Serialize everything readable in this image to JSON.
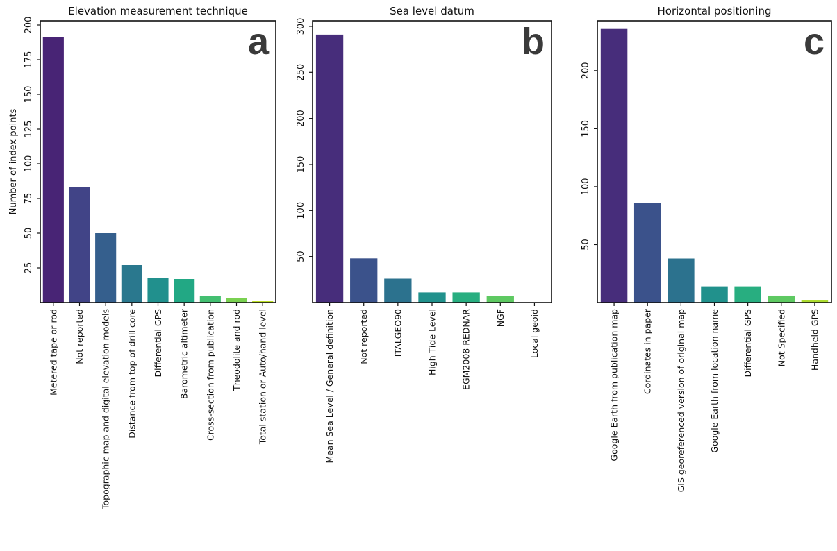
{
  "chart_data": [
    {
      "type": "bar",
      "panel": "a",
      "title": "Elevation measurement technique",
      "ylabel": "Number of index points",
      "ylim": [
        0,
        203
      ],
      "yticks": [
        25,
        50,
        75,
        100,
        125,
        150,
        175,
        200
      ],
      "categories": [
        "Metered tape or rod",
        "Not reported",
        "Topographic map and digital elevation models",
        "Distance from top of drill core",
        "Differential GPS",
        "Barometric altimeter",
        "Cross-section from publication",
        "Theodolite and rod",
        "Total station or Auto/hand level"
      ],
      "values": [
        191,
        83,
        50,
        27,
        18,
        17,
        5,
        3,
        1
      ],
      "colors": [
        "#482475",
        "#414487",
        "#355f8d",
        "#2a788e",
        "#21908d",
        "#22a884",
        "#43bf71",
        "#7ad151",
        "#bddf26"
      ],
      "grid": false
    },
    {
      "type": "bar",
      "panel": "b",
      "title": "Sea level datum",
      "ylabel": "",
      "ylim": [
        0,
        306
      ],
      "yticks": [
        50,
        100,
        150,
        200,
        250,
        300
      ],
      "categories": [
        "Mean Sea Level / General definition",
        "Not reported",
        "ITALGEO90",
        "High Tide Level",
        "EGM2008 REDNAR",
        "NGF",
        "Local geoid"
      ],
      "values": [
        291,
        48,
        26,
        11,
        11,
        7,
        0
      ],
      "colors": [
        "#472d7b",
        "#3b528b",
        "#2c728e",
        "#21918c",
        "#28ae80",
        "#5ec962",
        "#addc30"
      ],
      "grid": false
    },
    {
      "type": "bar",
      "panel": "c",
      "title": "Horizontal positioning",
      "ylabel": "",
      "ylim": [
        0,
        243
      ],
      "yticks": [
        50,
        100,
        150,
        200
      ],
      "categories": [
        "Google Earth from publication map",
        "Cordinates in paper",
        "GIS georeferenced version of original map",
        "Google Earth from location name",
        "Differential GPS",
        "Not Specified",
        "Handheld GPS"
      ],
      "values": [
        236,
        86,
        38,
        14,
        14,
        6,
        2
      ],
      "colors": [
        "#472d7b",
        "#3b528b",
        "#2c728e",
        "#21918c",
        "#28ae80",
        "#5ec962",
        "#addc30"
      ],
      "grid": false
    }
  ]
}
